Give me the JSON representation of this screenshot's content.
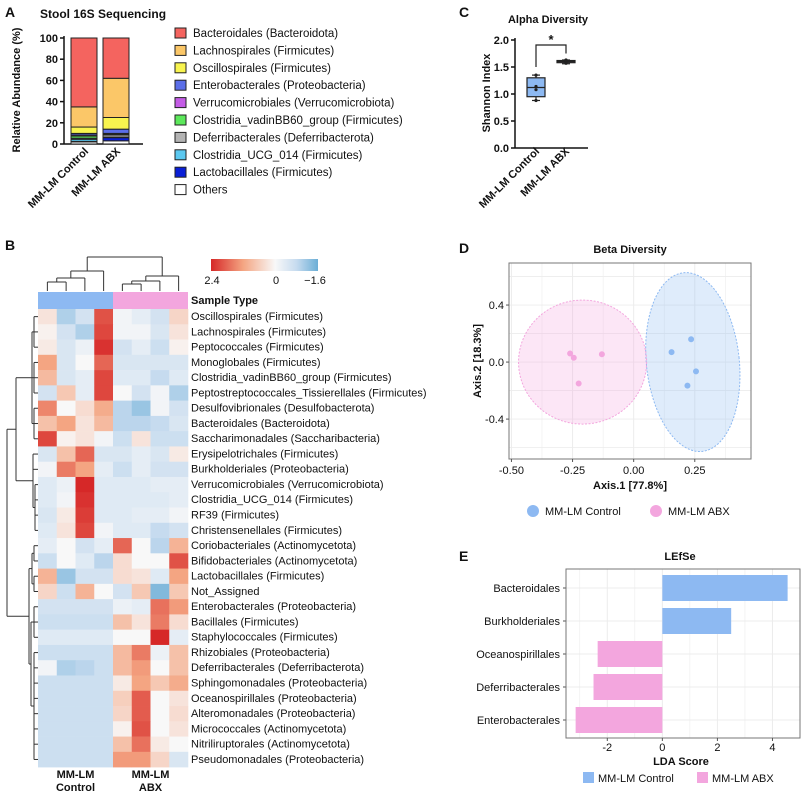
{
  "chart_data": [
    {
      "panel_label": "A",
      "type": "bar",
      "stacked": true,
      "title": "Stool 16S Sequencing",
      "ylabel": "Relative Abundance (%)",
      "ylim": [
        0,
        100
      ],
      "yticks": [
        0,
        20,
        40,
        60,
        80,
        100
      ],
      "ytick_labels": [
        "0",
        "20",
        "40",
        "60",
        "80",
        "100"
      ],
      "categories": [
        "MM-LM Control",
        "MM-LM ABX"
      ],
      "series": [
        {
          "name": "Bacteroidales (Bacteroidota)",
          "color": "#f4645f",
          "values": [
            65,
            38
          ]
        },
        {
          "name": "Lachnospirales (Firmicutes)",
          "color": "#fbc768",
          "values": [
            19,
            37
          ]
        },
        {
          "name": "Oscillospirales (Firmicutes)",
          "color": "#f8f44f",
          "values": [
            6,
            11
          ]
        },
        {
          "name": "Enterobacterales (Proteobacteria)",
          "color": "#5b6ee8",
          "values": [
            1.5,
            4
          ]
        },
        {
          "name": "Verrucomicrobiales (Verrucomicrobiota)",
          "color": "#c45ce6",
          "values": [
            1,
            0.5
          ]
        },
        {
          "name": "Clostridia_vadinBB60_group (Firmicutes)",
          "color": "#5ce85b",
          "values": [
            2,
            1
          ]
        },
        {
          "name": "Deferribacterales (Deferribacterota)",
          "color": "#b3b3b3",
          "values": [
            1,
            2
          ]
        },
        {
          "name": "Clostridia_UCG_014 (Firmicutes)",
          "color": "#5bc8f0",
          "values": [
            2,
            0.5
          ]
        },
        {
          "name": "Lactobacillales (Firmicutes)",
          "color": "#0a1fd6",
          "values": [
            0.5,
            3
          ]
        },
        {
          "name": "Others",
          "color": "#ffffff",
          "values": [
            2,
            3
          ]
        }
      ]
    },
    {
      "panel_label": "C",
      "type": "box",
      "title": "Alpha Diversity",
      "ylabel": "Shannon Index",
      "ylim": [
        0,
        2
      ],
      "yticks": [
        0,
        0.5,
        1,
        1.5,
        2
      ],
      "ytick_labels": [
        "0.0",
        "0.5",
        "1.0",
        "1.5",
        "2.0"
      ],
      "significance": "*",
      "groups": [
        {
          "name": "MM-LM Control",
          "color": "#8db9f2",
          "min": 0.88,
          "q1": 0.95,
          "median": 1.12,
          "q3": 1.3,
          "max": 1.35,
          "points": [
            0.88,
            1.08,
            1.14,
            1.35
          ]
        },
        {
          "name": "MM-LM ABX",
          "color": "#f3a6de",
          "min": 1.56,
          "q1": 1.58,
          "median": 1.6,
          "q3": 1.62,
          "max": 1.63,
          "points": [
            1.57,
            1.59,
            1.62,
            1.63
          ]
        }
      ]
    },
    {
      "panel_label": "B",
      "type": "heatmap",
      "legend_title": "Sample Type",
      "scale": {
        "min": -1.6,
        "max": 2.4,
        "tick_labels": [
          "2.4",
          "0",
          "−1.6"
        ]
      },
      "column_groups": [
        {
          "name_line1": "MM-LM",
          "name_line2": "Control",
          "color": "#8db9f2",
          "columns": 4
        },
        {
          "name_line1": "MM-LM",
          "name_line2": "ABX",
          "color": "#f3a6de",
          "columns": 4
        }
      ],
      "rows": [
        "Oscillospirales (Firmicutes)",
        "Lachnospirales (Firmicutes)",
        "Peptococcales (Firmicutes)",
        "Monoglobales (Firmicutes)",
        "Clostridia_vadinBB60_group (Firmicutes)",
        "Peptostreptococcales_Tissierellales (Firmicutes)",
        "Desulfovibrionales (Desulfobacterota)",
        "Bacteroidales (Bacteroidota)",
        "Saccharimonadales (Saccharibacteria)",
        "Erysipelotrichales (Firmicutes)",
        "Burkholderiales (Proteobacteria)",
        "Verrucomicrobiales (Verrucomicrobiota)",
        "Clostridia_UCG_014 (Firmicutes)",
        "RF39 (Firmicutes)",
        "Christensenellales (Firmicutes)",
        "Coriobacteriales (Actinomycetota)",
        "Bifidobacteriales (Actinomycetota)",
        "Lactobacillales (Firmicutes)",
        "Not_Assigned",
        "Enterobacterales (Proteobacteria)",
        "Bacillales (Firmicutes)",
        "Staphylococcales (Firmicutes)",
        "Rhizobiales (Proteobacteria)",
        "Deferribacterales (Deferribacterota)",
        "Sphingomonadales (Proteobacteria)",
        "Oceanospirillales (Proteobacteria)",
        "Alteromonadales (Proteobacteria)",
        "Micrococcales (Actinomycetota)",
        "Nitriliruptorales (Actinomycetota)",
        "Pseudomonadales (Proteobacteria)"
      ],
      "values": [
        [
          0.3,
          -1.0,
          -0.6,
          2.0,
          -0.1,
          -0.3,
          -0.6,
          0.5
        ],
        [
          0.1,
          -0.6,
          -1.0,
          2.1,
          -0.1,
          -0.1,
          -0.5,
          0.3
        ],
        [
          0.2,
          -0.5,
          -0.2,
          2.3,
          -0.6,
          -0.3,
          -0.7,
          0.1
        ],
        [
          1.2,
          -0.5,
          0.0,
          1.8,
          -0.5,
          -0.5,
          -0.5,
          -0.5
        ],
        [
          0.9,
          -0.5,
          -0.3,
          2.1,
          -0.4,
          -0.4,
          -0.8,
          -0.4
        ],
        [
          -0.6,
          0.7,
          -0.3,
          2.1,
          0.0,
          -0.6,
          -0.1,
          -1.0
        ],
        [
          1.5,
          0.0,
          0.4,
          1.1,
          -0.9,
          -1.2,
          -0.1,
          -0.6
        ],
        [
          0.8,
          1.2,
          0.3,
          0.9,
          -0.9,
          -0.9,
          -0.8,
          -0.5
        ],
        [
          2.1,
          0.1,
          0.3,
          -0.1,
          -0.7,
          0.3,
          -0.7,
          -0.7
        ],
        [
          -0.5,
          0.8,
          1.8,
          -0.5,
          -0.5,
          -0.3,
          -0.5,
          0.2
        ],
        [
          -0.1,
          1.6,
          1.2,
          -0.3,
          -0.7,
          -0.3,
          -0.6,
          -0.6
        ],
        [
          -0.4,
          -0.2,
          2.4,
          -0.4,
          -0.4,
          -0.4,
          -0.3,
          -0.3
        ],
        [
          -0.4,
          -0.1,
          2.3,
          -0.4,
          -0.4,
          -0.4,
          -0.4,
          -0.3
        ],
        [
          -0.5,
          0.2,
          2.2,
          -0.4,
          -0.4,
          -0.3,
          -0.3,
          -0.1
        ],
        [
          -0.4,
          0.3,
          2.1,
          -0.1,
          -0.4,
          -0.4,
          -0.8,
          -0.6
        ],
        [
          -0.3,
          0.0,
          -0.6,
          -0.3,
          1.8,
          0.0,
          -0.9,
          1.0
        ],
        [
          -0.7,
          0.0,
          -0.4,
          -0.9,
          0.4,
          0.0,
          0.0,
          2.0
        ],
        [
          1.0,
          -1.2,
          -0.6,
          -0.6,
          0.4,
          0.3,
          -0.4,
          1.2
        ],
        [
          0.5,
          -0.7,
          1.0,
          0.0,
          -0.6,
          0.7,
          -1.4,
          0.7
        ],
        [
          -0.6,
          -0.6,
          -0.6,
          -0.6,
          -0.2,
          -0.3,
          1.7,
          1.3
        ],
        [
          -0.7,
          -0.7,
          -0.7,
          -0.7,
          0.8,
          0.3,
          1.6,
          0.4
        ],
        [
          -0.4,
          -0.4,
          -0.4,
          -0.4,
          0.0,
          0.0,
          2.4,
          -0.3
        ],
        [
          -0.7,
          -0.7,
          -0.7,
          -0.7,
          0.9,
          1.6,
          -0.2,
          0.8
        ],
        [
          -0.1,
          -1.0,
          -0.9,
          -0.7,
          0.9,
          1.3,
          0.0,
          0.8
        ],
        [
          -0.7,
          -0.7,
          -0.7,
          -0.7,
          0.2,
          1.2,
          0.7,
          1.1
        ],
        [
          -0.7,
          -0.7,
          -0.7,
          -0.7,
          0.6,
          1.9,
          0.0,
          0.3
        ],
        [
          -0.7,
          -0.7,
          -0.7,
          -0.7,
          0.5,
          1.9,
          0.0,
          0.4
        ],
        [
          -0.7,
          -0.7,
          -0.7,
          -0.7,
          0.1,
          2.0,
          0.0,
          0.3
        ],
        [
          -0.7,
          -0.7,
          -0.7,
          -0.7,
          0.8,
          1.7,
          0.2,
          0.0
        ],
        [
          -0.7,
          -0.7,
          -0.7,
          -0.7,
          1.3,
          1.3,
          0.5,
          -0.5
        ]
      ]
    },
    {
      "panel_label": "D",
      "type": "scatter",
      "title": "Beta Diversity",
      "xlabel": "Axis.1 [77.8%]",
      "ylabel": "Axis.2 [18.3%]",
      "xlim": [
        -0.51,
        0.48
      ],
      "ylim": [
        -0.68,
        0.695
      ],
      "xticks": [
        -0.5,
        -0.25,
        0,
        0.25
      ],
      "xtick_labels": [
        "-0.50",
        "-0.25",
        "0.00",
        "0.25"
      ],
      "yticks": [
        -0.4,
        0,
        0.4
      ],
      "ytick_labels": [
        "-0.4",
        "0.0",
        "0.4"
      ],
      "grid": true,
      "legend_position": "bottom",
      "series": [
        {
          "name": "MM-LM Control",
          "color": "#8db9f2",
          "points": [
            [
              0.155,
              0.07
            ],
            [
              0.235,
              0.16
            ],
            [
              0.255,
              -0.065
            ],
            [
              0.22,
              -0.165
            ]
          ],
          "ellipse": {
            "cx": 0.242,
            "cy": 0.0,
            "rx": 0.19,
            "ry": 0.63,
            "angle": -6
          }
        },
        {
          "name": "MM-LM ABX",
          "color": "#f3a6de",
          "points": [
            [
              -0.26,
              0.06
            ],
            [
              -0.245,
              0.03
            ],
            [
              -0.13,
              0.055
            ],
            [
              -0.225,
              -0.15
            ]
          ],
          "ellipse": {
            "cx": -0.209,
            "cy": 0.0,
            "rx": 0.262,
            "ry": 0.435,
            "angle": 0
          }
        }
      ]
    },
    {
      "panel_label": "E",
      "type": "bar",
      "orientation": "horizontal",
      "title": "LEfSe",
      "xlabel": "LDA Score",
      "xlim": [
        -3.5,
        5.0
      ],
      "xticks": [
        -2,
        0,
        2,
        4
      ],
      "xtick_labels": [
        "-2",
        "0",
        "2",
        "4"
      ],
      "grid": true,
      "legend_position": "bottom",
      "categories": [
        "Bacteroidales",
        "Burkholderiales",
        "Oceanospirillales",
        "Deferribacterales",
        "Enterobacterales"
      ],
      "values": [
        4.55,
        2.5,
        -2.35,
        -2.5,
        -3.15
      ],
      "bar_groups": [
        0,
        0,
        1,
        1,
        1
      ],
      "groups": [
        {
          "name": "MM-LM Control",
          "color": "#8db9f2"
        },
        {
          "name": "MM-LM ABX",
          "color": "#f3a6de"
        }
      ]
    }
  ]
}
